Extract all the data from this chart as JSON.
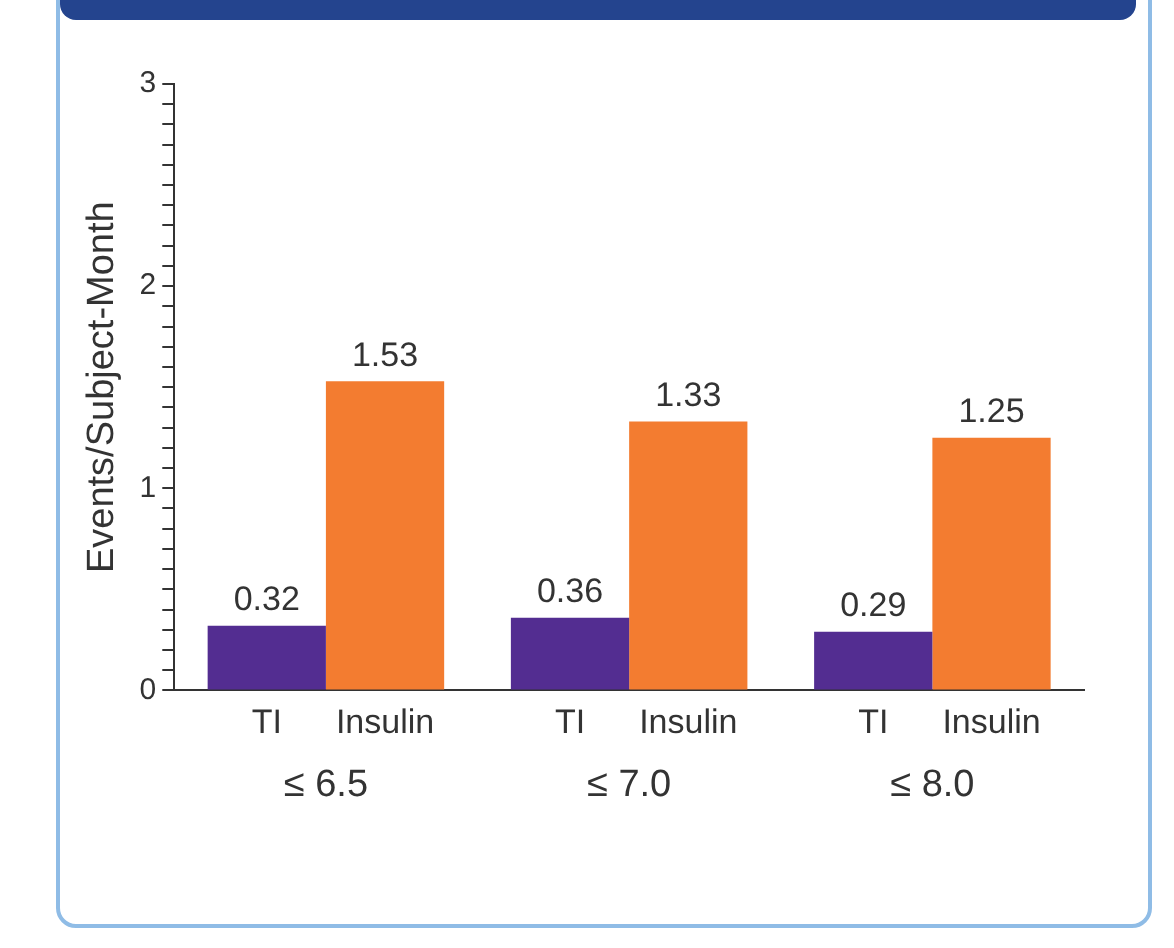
{
  "chart_data": {
    "type": "bar",
    "ylabel": "Events/Subject-Month",
    "categories": [
      "≤ 6.5",
      "≤ 7.0",
      "≤ 8.0"
    ],
    "series": [
      {
        "name": "TI",
        "color": "#532d91",
        "values": [
          0.32,
          0.36,
          0.29
        ]
      },
      {
        "name": "Insulin",
        "color": "#f37c30",
        "values": [
          1.53,
          1.33,
          1.25
        ]
      }
    ],
    "ylim": [
      0,
      3
    ],
    "yticks": [
      0,
      {
        "value": 0.1,
        "label": null
      },
      {
        "value": 0.2,
        "label": null
      },
      {
        "value": 0.3,
        "label": null
      },
      {
        "value": 0.4,
        "label": null
      },
      {
        "value": 0.5,
        "label": null
      },
      {
        "value": 0.6,
        "label": null
      },
      {
        "value": 0.7,
        "label": null
      },
      {
        "value": 0.8,
        "label": null
      },
      {
        "value": 0.9,
        "label": null
      },
      1,
      {
        "value": 1.1,
        "label": null
      },
      {
        "value": 1.2,
        "label": null
      },
      {
        "value": 1.3,
        "label": null
      },
      {
        "value": 1.4,
        "label": null
      },
      {
        "value": 1.5,
        "label": null
      },
      {
        "value": 1.6,
        "label": null
      },
      {
        "value": 1.7,
        "label": null
      },
      {
        "value": 1.8,
        "label": null
      },
      {
        "value": 1.9,
        "label": null
      },
      2,
      {
        "value": 2.1,
        "label": null
      },
      {
        "value": 2.2,
        "label": null
      },
      {
        "value": 2.3,
        "label": null
      },
      {
        "value": 2.4,
        "label": null
      },
      {
        "value": 2.5,
        "label": null
      },
      {
        "value": 2.6,
        "label": null
      },
      {
        "value": 2.7,
        "label": null
      },
      {
        "value": 2.8,
        "label": null
      },
      {
        "value": 2.9,
        "label": null
      },
      3
    ],
    "data_labels": true,
    "grid": false,
    "legend": false
  }
}
